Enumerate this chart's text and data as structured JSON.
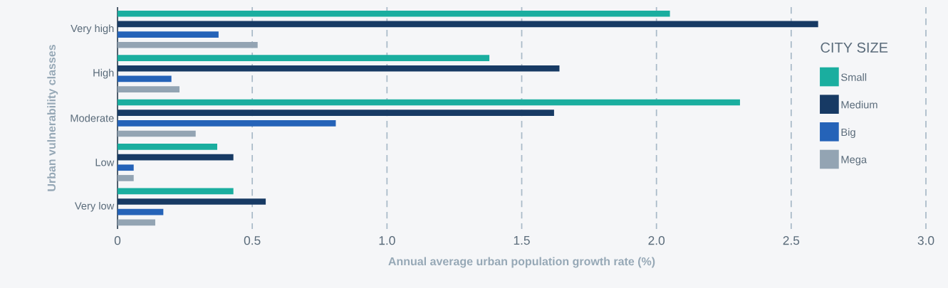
{
  "chart_data": {
    "type": "bar",
    "orientation": "horizontal",
    "xlabel": "Annual average urban population growth rate (%)",
    "ylabel": "Urban vulnerability classes",
    "legend_title": "CITY SIZE",
    "categories": [
      "Very high",
      "High",
      "Moderate",
      "Low",
      "Very low"
    ],
    "series": [
      {
        "name": "Small",
        "color": "#1aae9f",
        "values": [
          2.05,
          1.38,
          2.31,
          0.37,
          0.43
        ]
      },
      {
        "name": "Medium",
        "color": "#173a64",
        "values": [
          2.6,
          1.64,
          1.62,
          0.43,
          0.55
        ]
      },
      {
        "name": "Big",
        "color": "#2563b8",
        "values": [
          0.375,
          0.2,
          0.81,
          0.06,
          0.17
        ]
      },
      {
        "name": "Mega",
        "color": "#93a4b3",
        "values": [
          0.52,
          0.23,
          0.29,
          0.06,
          0.14
        ]
      }
    ],
    "xlim": [
      0,
      3.0
    ],
    "xticks": [
      0,
      0.5,
      {
        "value": 1,
        "label": "1.0"
      },
      1.5,
      {
        "value": 2,
        "label": "2.0"
      },
      2.5,
      {
        "value": 3,
        "label": "3.0"
      }
    ],
    "grid": "x",
    "legend": "right"
  }
}
